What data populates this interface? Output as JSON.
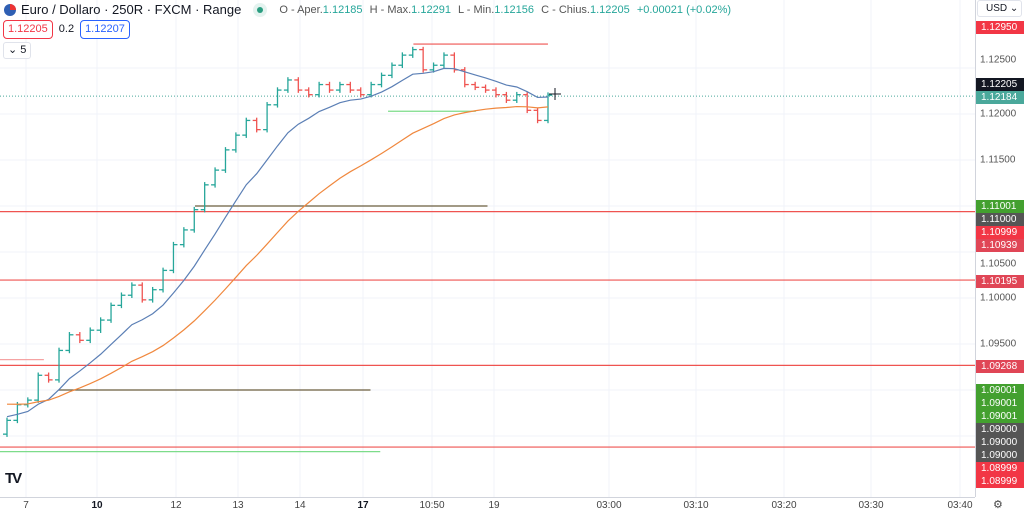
{
  "header": {
    "title": "Euro / Dollaro · 250R · FXCM · Range",
    "open_label": "O - Aper.",
    "open": "1.12185",
    "high_label": "H - Max.",
    "high": "1.12291",
    "low_label": "L - Min.",
    "low": "1.12156",
    "close_label": "C - Chius.",
    "close": "1.12205",
    "change": "+0.00021 (+0.02%)"
  },
  "trade": {
    "sell": "1.12205",
    "spread": "0.2",
    "buy": "1.12207"
  },
  "indicators_toggle": {
    "count": "5"
  },
  "currency": "USD",
  "colors": {
    "up": "#26a69a",
    "down": "#ef5350",
    "ema_fast": "#5b7fb5",
    "ema_slow": "#f0883e"
  },
  "price_ticks": [
    "1.12500",
    "1.12000",
    "1.11500",
    "1.10500",
    "1.10000",
    "1.09500"
  ],
  "price_labels": [
    {
      "text": "1.12950",
      "color": "#f23645"
    },
    {
      "text": "1.12205",
      "color": "#131722"
    },
    {
      "text": "1.12184",
      "color": "#4aa89b"
    },
    {
      "text": "1.11001",
      "color": "#43a02f"
    },
    {
      "text": "1.11000",
      "color": "#555555"
    },
    {
      "text": "1.10999",
      "color": "#f23645"
    },
    {
      "text": "1.10939",
      "color": "#e04656"
    },
    {
      "text": "1.10195",
      "color": "#e04656"
    },
    {
      "text": "1.09268",
      "color": "#e04656"
    },
    {
      "text": "1.09001",
      "color": "#43a02f"
    },
    {
      "text": "1.09001",
      "color": "#43a02f"
    },
    {
      "text": "1.09001",
      "color": "#43a02f"
    },
    {
      "text": "1.09000",
      "color": "#555555"
    },
    {
      "text": "1.09000",
      "color": "#555555"
    },
    {
      "text": "1.09000",
      "color": "#555555"
    },
    {
      "text": "1.08999",
      "color": "#f23645"
    },
    {
      "text": "1.08999",
      "color": "#f23645"
    }
  ],
  "time_labels": [
    {
      "t": "7"
    },
    {
      "t": "10",
      "bold": true
    },
    {
      "t": "12"
    },
    {
      "t": "13"
    },
    {
      "t": "14"
    },
    {
      "t": "17",
      "bold": true
    },
    {
      "t": "10:50"
    },
    {
      "t": "19"
    },
    {
      "t": "03:00"
    },
    {
      "t": "03:10"
    },
    {
      "t": "03:20"
    },
    {
      "t": "03:30"
    },
    {
      "t": "03:40"
    }
  ],
  "chart_data": {
    "type": "ohlc-range-bars",
    "symbol": "EURUSD",
    "ylim": [
      1.0825,
      1.1295
    ],
    "closes": [
      1.0867,
      1.0884,
      1.0889,
      1.0916,
      1.0911,
      1.0943,
      1.096,
      1.0954,
      1.0965,
      1.0976,
      1.0992,
      1.1003,
      1.1014,
      1.0998,
      1.1009,
      1.103,
      1.1058,
      1.1074,
      1.1096,
      1.1123,
      1.1139,
      1.1161,
      1.1177,
      1.1193,
      1.1183,
      1.121,
      1.1226,
      1.1237,
      1.1226,
      1.1221,
      1.1232,
      1.1226,
      1.1232,
      1.1226,
      1.1221,
      1.1232,
      1.1242,
      1.1253,
      1.1264,
      1.127,
      1.1248,
      1.1253,
      1.1264,
      1.1248,
      1.1232,
      1.1229,
      1.1226,
      1.1221,
      1.1215,
      1.1221,
      1.1204,
      1.1193,
      1.12205
    ],
    "levels": [
      {
        "price": 1.10939,
        "color": "#ef5350",
        "from": 0,
        "to": 1
      },
      {
        "price": 1.10195,
        "color": "#ef5350",
        "from": 0,
        "to": 1
      },
      {
        "price": 1.09268,
        "color": "#ef5350",
        "from": 0,
        "to": 1
      },
      {
        "price": 1.0838,
        "color": "#ef5350",
        "from": 0,
        "to": 1
      },
      {
        "price": 1.11,
        "color": "#6b5d3f",
        "from": 0.2,
        "to": 0.5
      },
      {
        "price": 1.09,
        "color": "#6b5d3f",
        "from": 0.06,
        "to": 0.38
      },
      {
        "price": 1.0833,
        "color": "#7ddc8a",
        "from": 0,
        "to": 0.39
      },
      {
        "price": 1.1276,
        "color": "#ef5350",
        "from": 0.424,
        "to": 0.562
      },
      {
        "price": 1.1203,
        "color": "#7ddc8a",
        "from": 0.398,
        "to": 0.488
      },
      {
        "price": 1.0933,
        "color": "#f5a3a3",
        "from": 0,
        "to": 0.045
      }
    ],
    "last_price": 1.12184
  }
}
